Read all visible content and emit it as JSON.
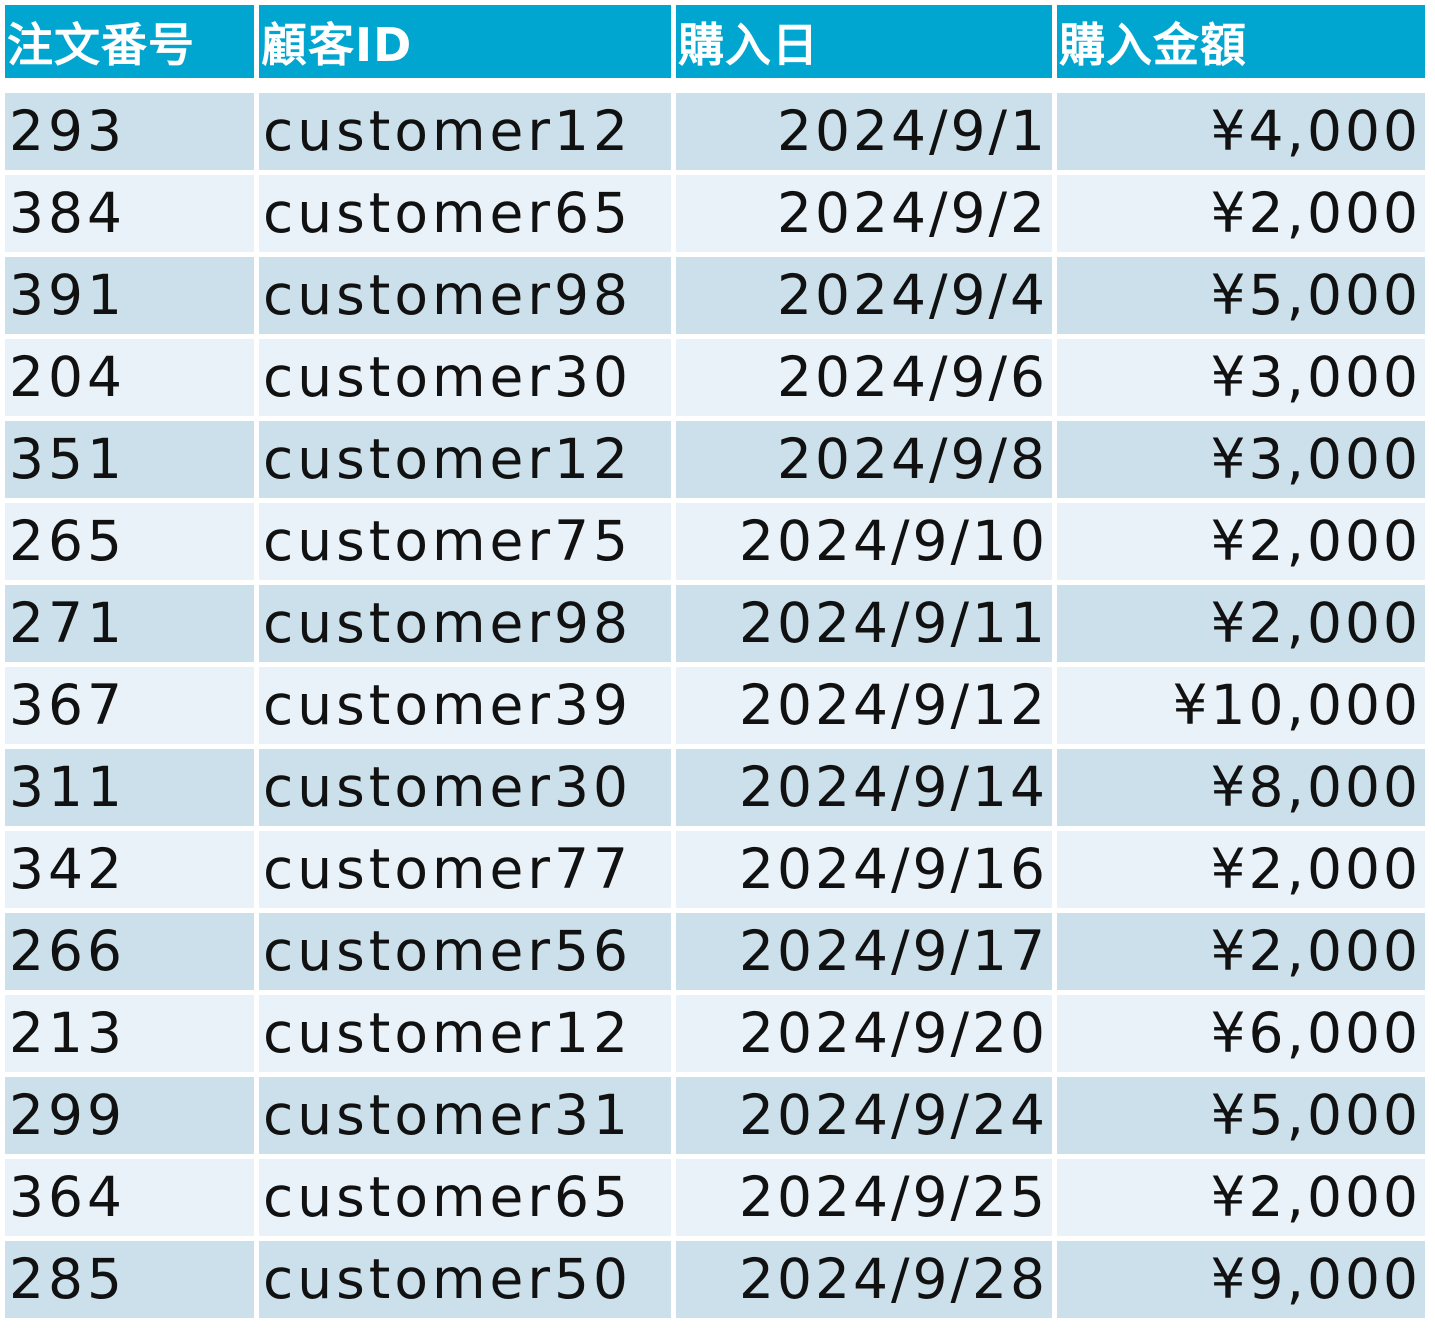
{
  "table": {
    "headers": [
      "注文番号",
      "顧客ID",
      "購入日",
      "購入金額"
    ],
    "rows": [
      [
        "293",
        "customer12",
        "2024/9/1",
        "¥4,000"
      ],
      [
        "384",
        "customer65",
        "2024/9/2",
        "¥2,000"
      ],
      [
        "391",
        "customer98",
        "2024/9/4",
        "¥5,000"
      ],
      [
        "204",
        "customer30",
        "2024/9/6",
        "¥3,000"
      ],
      [
        "351",
        "customer12",
        "2024/9/8",
        "¥3,000"
      ],
      [
        "265",
        "customer75",
        "2024/9/10",
        "¥2,000"
      ],
      [
        "271",
        "customer98",
        "2024/9/11",
        "¥2,000"
      ],
      [
        "367",
        "customer39",
        "2024/9/12",
        "¥10,000"
      ],
      [
        "311",
        "customer30",
        "2024/9/14",
        "¥8,000"
      ],
      [
        "342",
        "customer77",
        "2024/9/16",
        "¥2,000"
      ],
      [
        "266",
        "customer56",
        "2024/9/17",
        "¥2,000"
      ],
      [
        "213",
        "customer12",
        "2024/9/20",
        "¥6,000"
      ],
      [
        "299",
        "customer31",
        "2024/9/24",
        "¥5,000"
      ],
      [
        "364",
        "customer65",
        "2024/9/25",
        "¥2,000"
      ],
      [
        "285",
        "customer50",
        "2024/9/28",
        "¥9,000"
      ]
    ]
  },
  "colors": {
    "header_bg": "#00a6cf",
    "header_text": "#ffffff",
    "row_odd_bg": "#cbe0ea",
    "row_even_bg": "#e8f2f8",
    "cell_text": "#111111"
  }
}
